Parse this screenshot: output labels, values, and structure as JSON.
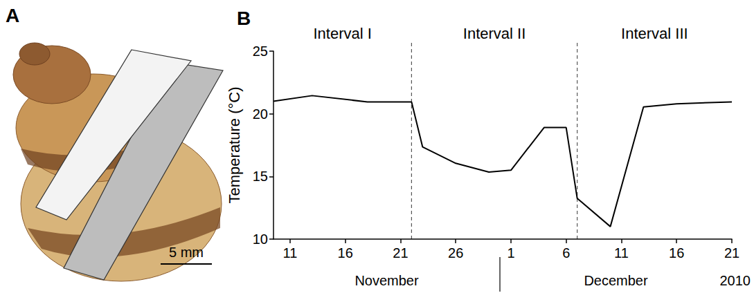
{
  "figure": {
    "panels": [
      {
        "letter": "A",
        "scale_bar": "5 mm"
      },
      {
        "letter": "B"
      }
    ]
  },
  "chart_data": {
    "type": "line",
    "color": "#000000",
    "x": [
      "2010-11-09T12:00",
      "2010-11-13",
      "2010-11-18",
      "2010-11-22",
      "2010-11-23",
      "2010-11-26",
      "2010-11-29",
      "2010-12-01",
      "2010-12-04",
      "2010-12-06",
      "2010-12-07",
      "2010-12-10",
      "2010-12-13",
      "2010-12-16",
      "2010-12-21"
    ],
    "values": [
      21.0,
      21.45,
      20.95,
      20.95,
      17.35,
      16.05,
      15.35,
      15.5,
      18.9,
      18.9,
      13.25,
      11.0,
      20.55,
      20.8,
      20.95
    ],
    "xlim": [
      "2010-11-09T12:00",
      "2010-12-21"
    ],
    "xticks": [
      {
        "value": "2010-11-11",
        "label": "11"
      },
      {
        "value": "2010-11-16",
        "label": "16"
      },
      {
        "value": "2010-11-21",
        "label": "21"
      },
      {
        "value": "2010-11-26",
        "label": "26"
      },
      {
        "value": "2010-12-01",
        "label": "1"
      },
      {
        "value": "2010-12-06",
        "label": "6"
      },
      {
        "value": "2010-12-11",
        "label": "11"
      },
      {
        "value": "2010-12-16",
        "label": "16"
      },
      {
        "value": "2010-12-21",
        "label": "21"
      }
    ],
    "ylim": [
      10,
      25
    ],
    "yticks": [
      10,
      15,
      20,
      25
    ],
    "y_label": "Temperature (°C)",
    "grid": false,
    "intervals": [
      {
        "label": "Interval I",
        "start": "2010-11-09T12:00",
        "end": "2010-11-22"
      },
      {
        "label": "Interval II",
        "start": "2010-11-22",
        "end": "2010-12-07"
      },
      {
        "label": "Interval III",
        "start": "2010-12-07",
        "end": "2010-12-21"
      }
    ],
    "x_groups": [
      {
        "label": "November",
        "start": "2010-11-09T12:00",
        "end": "2010-11-30"
      },
      {
        "label": "December",
        "start": "2010-11-30",
        "end": "2010-12-21"
      }
    ],
    "x_year": "2010"
  }
}
